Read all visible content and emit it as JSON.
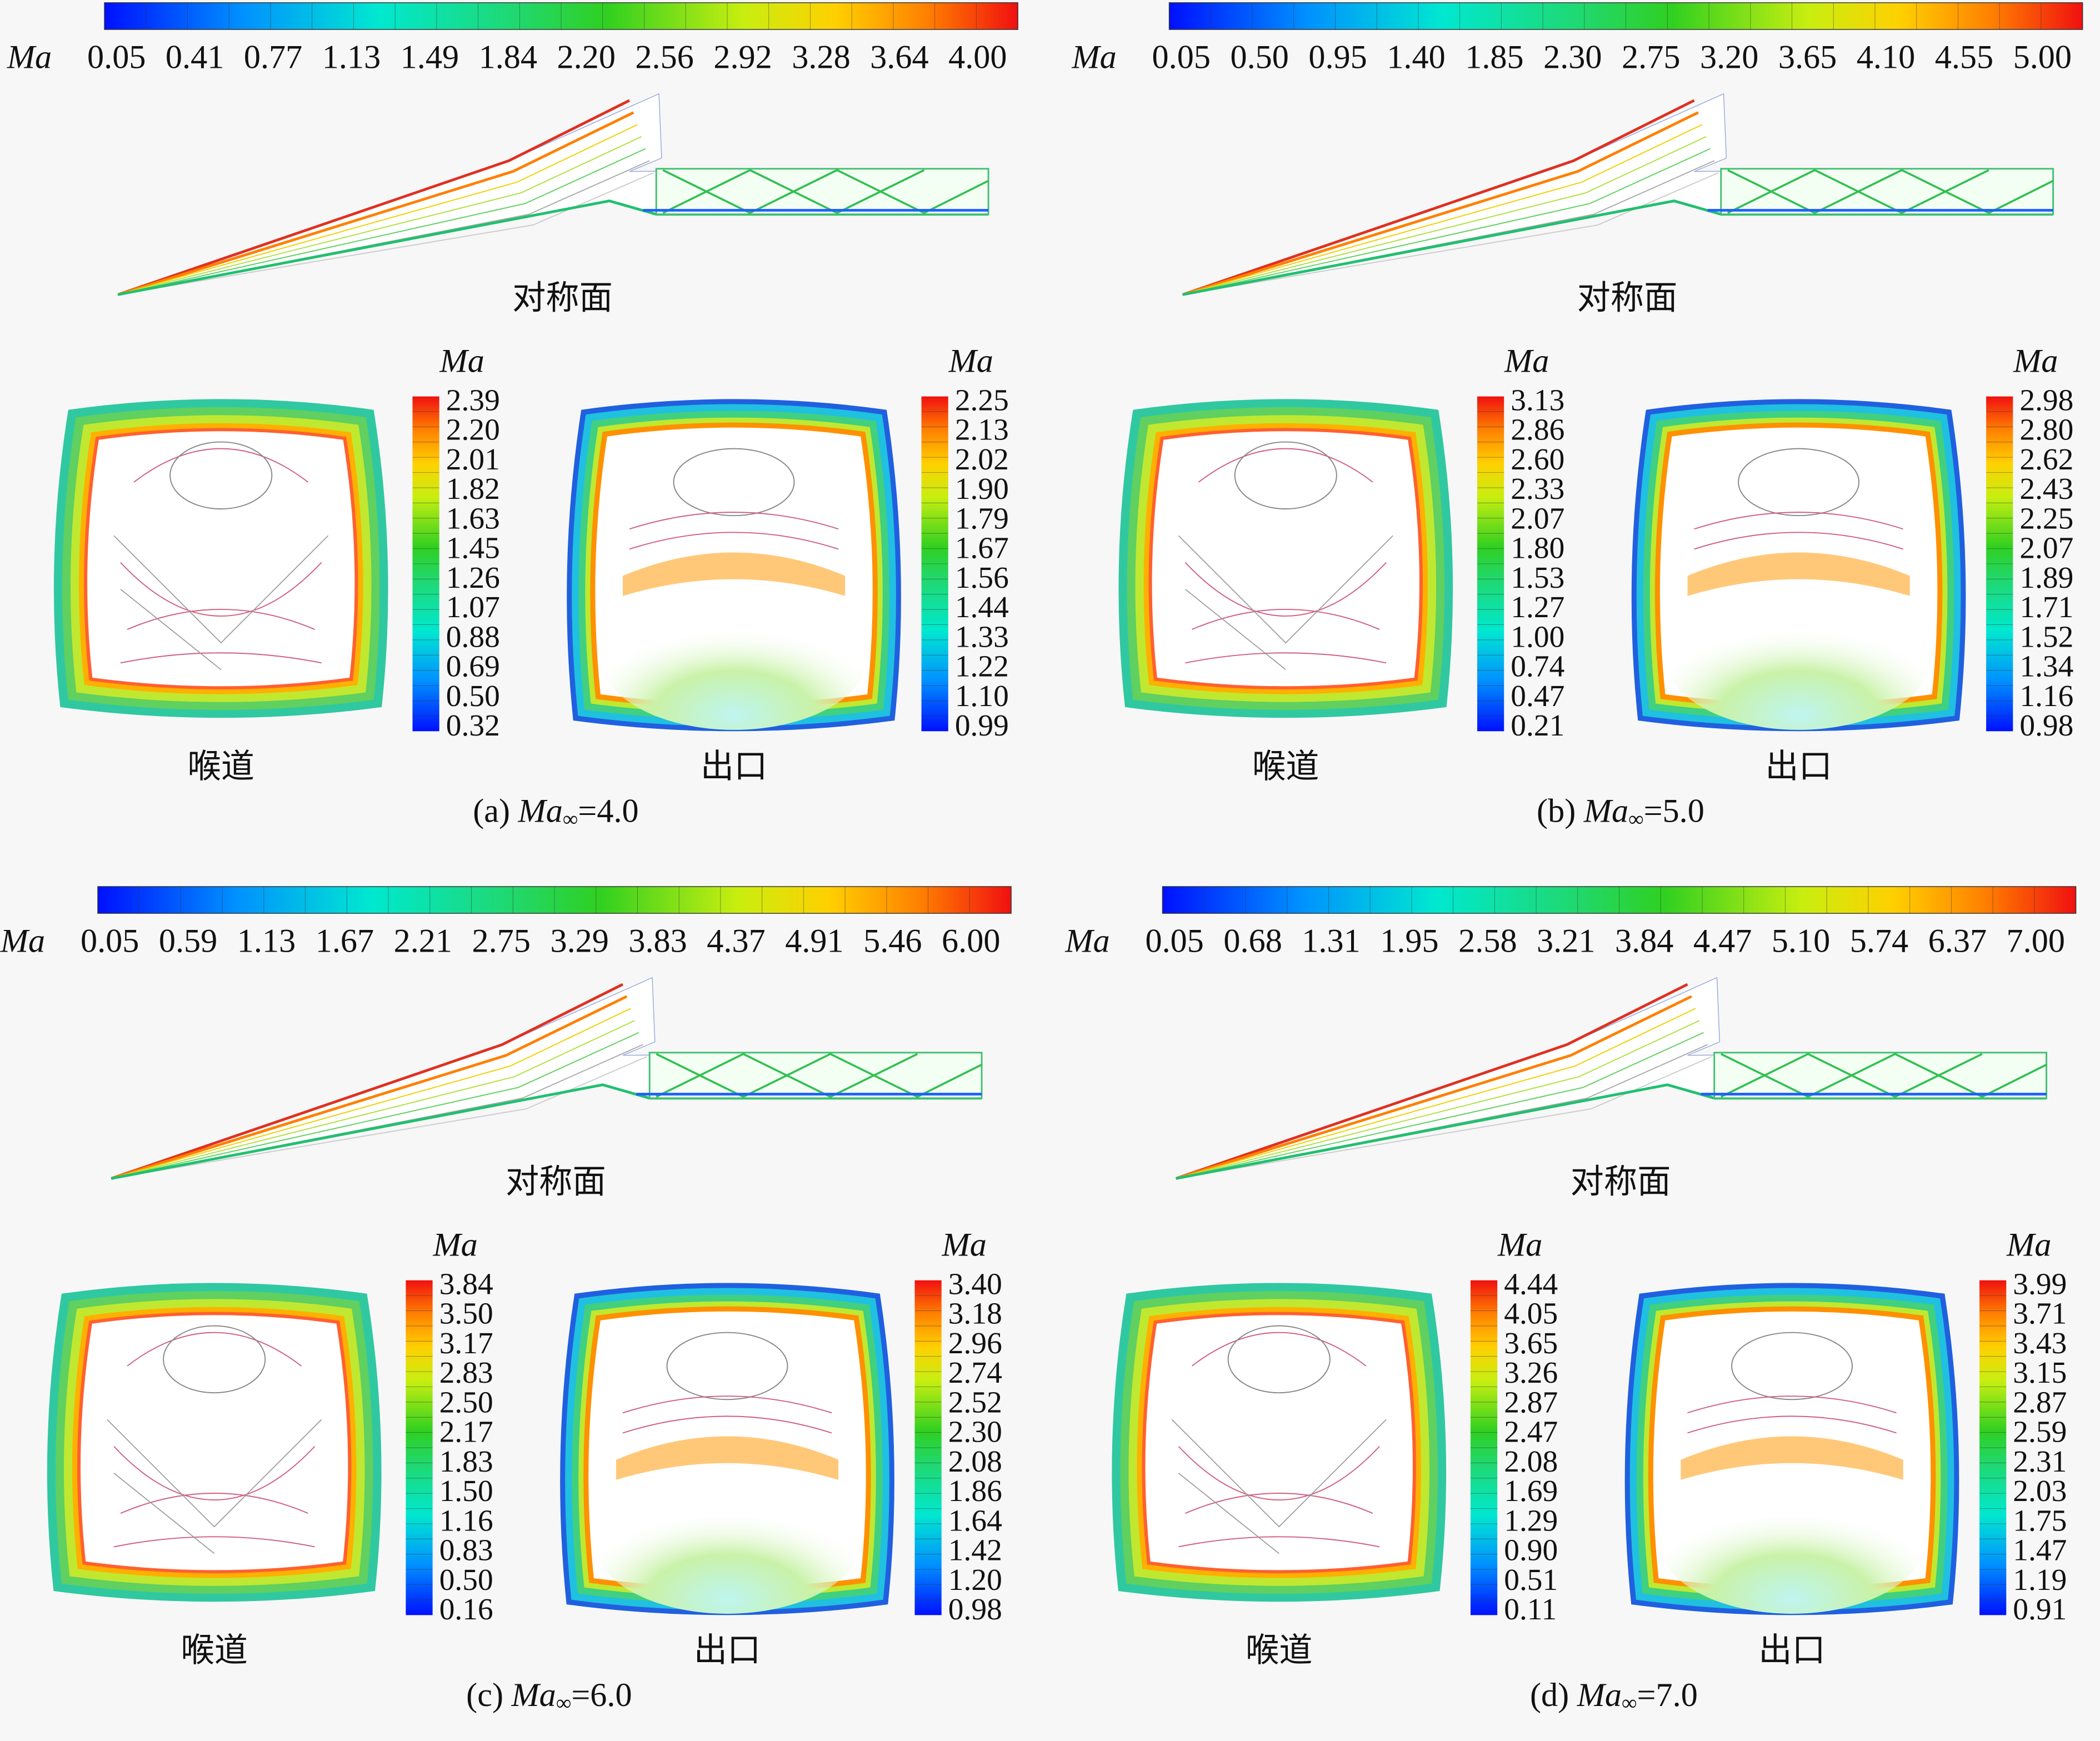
{
  "panels": [
    {
      "caption": {
        "label": "(a)",
        "symbol": "Ma",
        "subscript": "∞",
        "value": "=4.0"
      },
      "main_colorbar": {
        "title": "Ma",
        "ticks": [
          "0.05",
          "0.41",
          "0.77",
          "1.13",
          "1.49",
          "1.84",
          "2.20",
          "2.56",
          "2.92",
          "3.28",
          "3.64",
          "4.00"
        ]
      },
      "plane_label": "对称面",
      "throat": {
        "label": "喉道",
        "colorbar_title": "Ma",
        "ticks": [
          "2.39",
          "2.20",
          "2.01",
          "1.82",
          "1.63",
          "1.45",
          "1.26",
          "1.07",
          "0.88",
          "0.69",
          "0.50",
          "0.32"
        ]
      },
      "outlet": {
        "label": "出口",
        "colorbar_title": "Ma",
        "ticks": [
          "2.25",
          "2.13",
          "2.02",
          "1.90",
          "1.79",
          "1.67",
          "1.56",
          "1.44",
          "1.33",
          "1.22",
          "1.10",
          "0.99"
        ]
      }
    },
    {
      "caption": {
        "label": "(b)",
        "symbol": "Ma",
        "subscript": "∞",
        "value": "=5.0"
      },
      "main_colorbar": {
        "title": "Ma",
        "ticks": [
          "0.05",
          "0.50",
          "0.95",
          "1.40",
          "1.85",
          "2.30",
          "2.75",
          "3.20",
          "3.65",
          "4.10",
          "4.55",
          "5.00"
        ]
      },
      "plane_label": "对称面",
      "throat": {
        "label": "喉道",
        "colorbar_title": "Ma",
        "ticks": [
          "3.13",
          "2.86",
          "2.60",
          "2.33",
          "2.07",
          "1.80",
          "1.53",
          "1.27",
          "1.00",
          "0.74",
          "0.47",
          "0.21"
        ]
      },
      "outlet": {
        "label": "出口",
        "colorbar_title": "Ma",
        "ticks": [
          "2.98",
          "2.80",
          "2.62",
          "2.43",
          "2.25",
          "2.07",
          "1.89",
          "1.71",
          "1.52",
          "1.34",
          "1.16",
          "0.98"
        ]
      }
    },
    {
      "caption": {
        "label": "(c)",
        "symbol": "Ma",
        "subscript": "∞",
        "value": "=6.0"
      },
      "main_colorbar": {
        "title": "Ma",
        "ticks": [
          "0.05",
          "0.59",
          "1.13",
          "1.67",
          "2.21",
          "2.75",
          "3.29",
          "3.83",
          "4.37",
          "4.91",
          "5.46",
          "6.00"
        ]
      },
      "plane_label": "对称面",
      "throat": {
        "label": "喉道",
        "colorbar_title": "Ma",
        "ticks": [
          "3.84",
          "3.50",
          "3.17",
          "2.83",
          "2.50",
          "2.17",
          "1.83",
          "1.50",
          "1.16",
          "0.83",
          "0.50",
          "0.16"
        ]
      },
      "outlet": {
        "label": "出口",
        "colorbar_title": "Ma",
        "ticks": [
          "3.40",
          "3.18",
          "2.96",
          "2.74",
          "2.52",
          "2.30",
          "2.08",
          "1.86",
          "1.64",
          "1.42",
          "1.20",
          "0.98"
        ]
      }
    },
    {
      "caption": {
        "label": "(d)",
        "symbol": "Ma",
        "subscript": "∞",
        "value": "=7.0"
      },
      "main_colorbar": {
        "title": "Ma",
        "ticks": [
          "0.05",
          "0.68",
          "1.31",
          "1.95",
          "2.58",
          "3.21",
          "3.84",
          "4.47",
          "5.10",
          "5.74",
          "6.37",
          "7.00"
        ]
      },
      "plane_label": "对称面",
      "throat": {
        "label": "喉道",
        "colorbar_title": "Ma",
        "ticks": [
          "4.44",
          "4.05",
          "3.65",
          "3.26",
          "2.87",
          "2.47",
          "2.08",
          "1.69",
          "1.29",
          "0.90",
          "0.51",
          "0.11"
        ]
      },
      "outlet": {
        "label": "出口",
        "colorbar_title": "Ma",
        "ticks": [
          "3.99",
          "3.71",
          "3.43",
          "3.15",
          "2.87",
          "2.59",
          "2.31",
          "2.03",
          "1.75",
          "1.47",
          "1.19",
          "0.91"
        ]
      }
    }
  ]
}
